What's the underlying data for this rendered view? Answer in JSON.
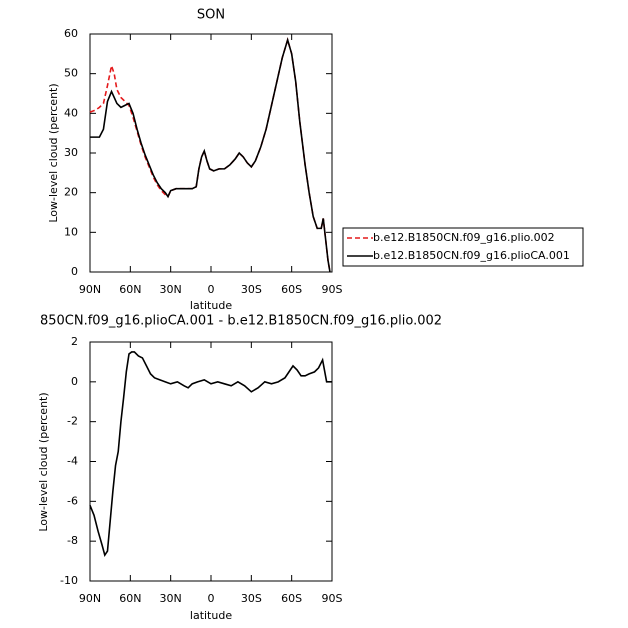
{
  "chart_data": [
    {
      "type": "line",
      "title": "SON",
      "x_label": "latitude",
      "y_label": "Low-level cloud (percent)",
      "x": [
        90,
        86,
        83,
        80,
        77,
        74,
        72,
        70,
        67,
        64,
        61,
        58,
        55,
        52,
        49,
        46,
        43,
        40,
        37,
        34,
        32,
        30,
        26,
        22,
        18,
        14,
        11,
        9,
        7,
        5,
        3,
        1,
        -2,
        -6,
        -10,
        -14,
        -18,
        -21,
        -24,
        -27,
        -30,
        -33,
        -37,
        -41,
        -45,
        -49,
        -53,
        -57,
        -60,
        -63,
        -66,
        -70,
        -73,
        -76,
        -79,
        -82,
        -83.5,
        -85,
        -87,
        -88.5
      ],
      "series": [
        {
          "name": "b.e12.B1850CN.f09_g16.plio.002",
          "color": "#e41a1c",
          "dashed": true,
          "values": [
            40.3,
            40.8,
            41.5,
            42.5,
            47,
            52,
            50,
            46,
            44,
            43,
            42,
            39,
            35.5,
            32,
            29,
            26.5,
            24,
            22,
            20.5,
            19.5,
            19,
            20.5,
            21,
            21,
            21,
            21,
            21.5,
            26,
            29,
            30.5,
            28,
            26,
            25.5,
            26,
            26,
            27,
            28.5,
            30,
            29,
            27.5,
            26.5,
            28,
            31.5,
            36,
            42,
            48,
            54,
            58.5,
            55,
            48,
            38,
            27,
            20,
            14,
            11,
            11,
            13.5,
            9,
            3,
            0
          ]
        },
        {
          "name": "b.e12.B1850CN.f09_g16.plioCA.001",
          "color": "#000000",
          "dashed": false,
          "values": [
            34,
            34,
            34,
            36,
            43,
            45.5,
            44,
            42.5,
            41.5,
            42,
            42.5,
            40,
            36,
            32.5,
            29.5,
            27,
            24.5,
            22.5,
            21,
            20,
            19,
            20.5,
            21,
            21,
            21,
            21,
            21.5,
            26,
            29,
            30.5,
            28,
            26,
            25.5,
            26,
            26,
            27,
            28.5,
            30,
            29,
            27.5,
            26.5,
            28,
            31.5,
            36,
            42,
            48,
            54,
            58.5,
            55,
            48,
            38,
            27,
            20,
            14,
            11,
            11,
            13.5,
            9,
            3,
            0
          ]
        }
      ],
      "xlim": [
        90,
        -90
      ],
      "xticks": [
        {
          "value": 90,
          "label": "90N"
        },
        {
          "value": 60,
          "label": "60N"
        },
        {
          "value": 30,
          "label": "30N"
        },
        0,
        {
          "value": -30,
          "label": "30S"
        },
        {
          "value": -60,
          "label": "60S"
        },
        {
          "value": -90,
          "label": "90S"
        }
      ],
      "ylim": [
        0,
        60
      ],
      "yticks": [
        0,
        10,
        20,
        30,
        40,
        50,
        60
      ],
      "legend": "right"
    },
    {
      "type": "line",
      "title": "850CN.f09_g16.plioCA.001 - b.e12.B1850CN.f09_g16.plio.002",
      "x_label": "latitude",
      "y_label": "Low-level cloud (percent)",
      "x": [
        90,
        87,
        84,
        81,
        79,
        77,
        75,
        73,
        71,
        69,
        67,
        65,
        63,
        61,
        59,
        57,
        54,
        51,
        48,
        45,
        42,
        38,
        34,
        30,
        25,
        20,
        17,
        14,
        10,
        5,
        0,
        -5,
        -10,
        -15,
        -20,
        -25,
        -30,
        -35,
        -40,
        -45,
        -50,
        -55,
        -58,
        -61,
        -64,
        -67,
        -70,
        -73,
        -77,
        -80,
        -83,
        -86,
        -90
      ],
      "values": [
        -6.2,
        -6.7,
        -7.5,
        -8.2,
        -8.7,
        -8.5,
        -7,
        -5.5,
        -4.2,
        -3.5,
        -2,
        -0.8,
        0.5,
        1.4,
        1.5,
        1.5,
        1.3,
        1.2,
        0.8,
        0.4,
        0.2,
        0.1,
        0,
        -0.1,
        0,
        -0.2,
        -0.3,
        -0.1,
        0,
        0.1,
        -0.1,
        0,
        -0.1,
        -0.2,
        0,
        -0.2,
        -0.5,
        -0.3,
        0,
        -0.1,
        0,
        0.2,
        0.5,
        0.8,
        0.6,
        0.3,
        0.3,
        0.4,
        0.5,
        0.7,
        1.1,
        0,
        0
      ],
      "color": "#000000",
      "xlim": [
        90,
        -90
      ],
      "xticks": [
        {
          "value": 90,
          "label": "90N"
        },
        {
          "value": 60,
          "label": "60N"
        },
        {
          "value": 30,
          "label": "30N"
        },
        0,
        {
          "value": -30,
          "label": "30S"
        },
        {
          "value": -60,
          "label": "60S"
        },
        {
          "value": -90,
          "label": "90S"
        }
      ],
      "ylim": [
        -10,
        2
      ],
      "yticks": [
        -10,
        -8,
        -6,
        -4,
        -2,
        0,
        2
      ]
    }
  ]
}
